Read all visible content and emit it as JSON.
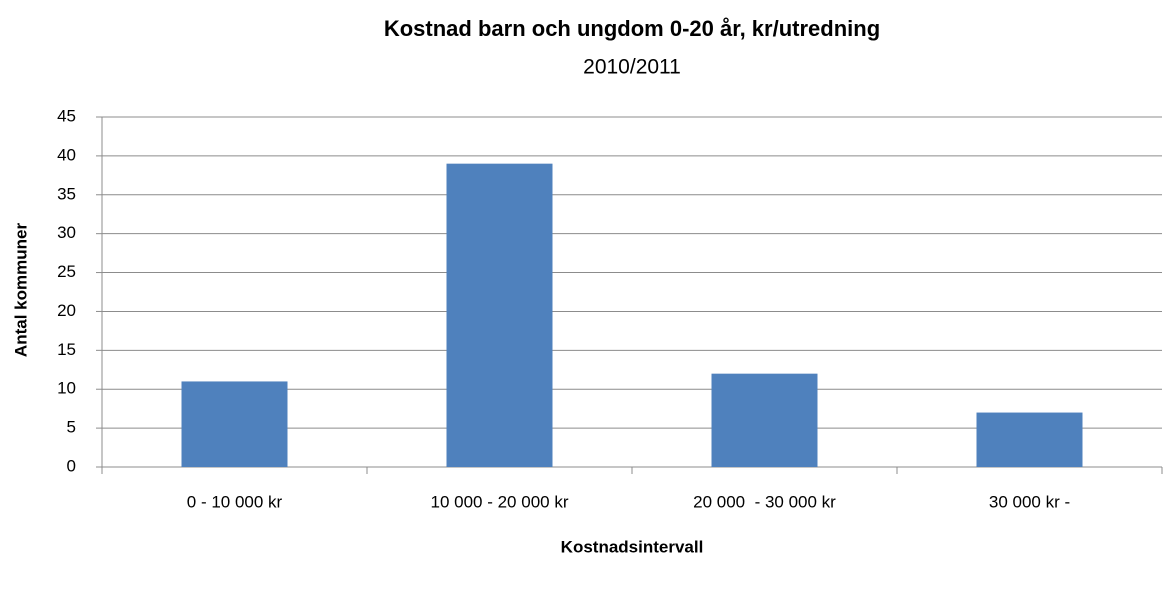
{
  "chart_data": {
    "type": "bar",
    "title": "Kostnad barn och ungdom 0-20 år, kr/utredning",
    "subtitle": "2010/2011",
    "y_label": "Antal kommuner",
    "x_label": "Kostnadsintervall",
    "categories": [
      "0 - 10 000 kr",
      "10 000 - 20 000 kr",
      "20 000  - 30 000 kr",
      "30 000 kr -"
    ],
    "values": [
      11,
      39,
      12,
      7
    ],
    "color": "#4f81bd",
    "ylim": [
      0,
      45
    ],
    "yticks": [
      0,
      5,
      10,
      15,
      20,
      25,
      30,
      35,
      40,
      45
    ],
    "grid": true
  }
}
